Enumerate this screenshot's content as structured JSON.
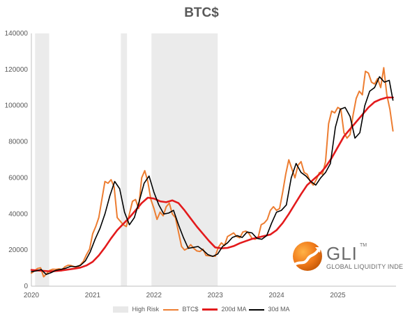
{
  "chart_data": {
    "type": "line",
    "title": "BTC$",
    "xlabel": "",
    "ylabel": "",
    "x_ticks": [
      "2020",
      "2021",
      "2022",
      "2023",
      "2024",
      "2025"
    ],
    "x_range": [
      2020.0,
      2025.95
    ],
    "ylim": [
      0,
      140000
    ],
    "y_ticks": [
      "0",
      "20000",
      "40000",
      "60000",
      "80000",
      "100000",
      "120000",
      "140000"
    ],
    "grid": false,
    "legend": "bottom",
    "high_risk_periods": [
      [
        2020.06,
        2020.29
      ],
      [
        2021.46,
        2021.56
      ],
      [
        2021.96,
        2023.04
      ]
    ],
    "series": [
      {
        "name": "BTC$",
        "color": "#ed7d31",
        "x": [
          2020.0,
          2020.05,
          2020.1,
          2020.15,
          2020.2,
          2020.25,
          2020.3,
          2020.35,
          2020.4,
          2020.45,
          2020.5,
          2020.55,
          2020.6,
          2020.65,
          2020.7,
          2020.75,
          2020.8,
          2020.85,
          2020.9,
          2020.95,
          2021.0,
          2021.05,
          2021.1,
          2021.15,
          2021.2,
          2021.25,
          2021.3,
          2021.35,
          2021.4,
          2021.45,
          2021.5,
          2021.55,
          2021.6,
          2021.65,
          2021.7,
          2021.75,
          2021.8,
          2021.85,
          2021.9,
          2021.95,
          2022.0,
          2022.05,
          2022.1,
          2022.15,
          2022.2,
          2022.25,
          2022.3,
          2022.35,
          2022.4,
          2022.45,
          2022.5,
          2022.55,
          2022.6,
          2022.65,
          2022.7,
          2022.75,
          2022.8,
          2022.85,
          2022.9,
          2022.95,
          2023.0,
          2023.05,
          2023.1,
          2023.15,
          2023.2,
          2023.25,
          2023.3,
          2023.35,
          2023.4,
          2023.45,
          2023.5,
          2023.55,
          2023.6,
          2023.65,
          2023.7,
          2023.75,
          2023.8,
          2023.85,
          2023.9,
          2023.95,
          2024.0,
          2024.05,
          2024.1,
          2024.15,
          2024.2,
          2024.25,
          2024.3,
          2024.35,
          2024.4,
          2024.45,
          2024.5,
          2024.55,
          2024.6,
          2024.65,
          2024.7,
          2024.75,
          2024.8,
          2024.85,
          2024.9,
          2024.95,
          2025.0,
          2025.05,
          2025.1,
          2025.15,
          2025.2,
          2025.25,
          2025.3,
          2025.35,
          2025.4,
          2025.45,
          2025.5,
          2025.55,
          2025.6,
          2025.65,
          2025.7,
          2025.75,
          2025.8,
          2025.85,
          2025.9
        ],
        "values": [
          7200,
          8500,
          9800,
          10200,
          5200,
          7000,
          8800,
          9400,
          9300,
          9600,
          9200,
          10800,
          11600,
          11400,
          10800,
          10600,
          11800,
          13800,
          17500,
          20500,
          29000,
          33000,
          38000,
          48000,
          58000,
          57000,
          59000,
          55000,
          38000,
          36000,
          34000,
          33000,
          40000,
          47000,
          48000,
          43000,
          60000,
          64000,
          58000,
          48000,
          43000,
          37000,
          41000,
          39000,
          44000,
          46000,
          40000,
          38000,
          30000,
          22000,
          20000,
          21000,
          23000,
          21000,
          19500,
          19200,
          20500,
          17000,
          16800,
          16700,
          16600,
          21500,
          24000,
          22500,
          27500,
          28500,
          29500,
          27500,
          26800,
          30000,
          30500,
          29200,
          26500,
          26000,
          27000,
          34000,
          35000,
          37000,
          42000,
          44000,
          42000,
          43000,
          52000,
          62000,
          70000,
          65000,
          60000,
          67000,
          69000,
          63000,
          62000,
          58000,
          56000,
          59000,
          63000,
          62000,
          69000,
          90000,
          97000,
          96000,
          99000,
          98000,
          85000,
          82000,
          84000,
          95000,
          104000,
          108000,
          106000,
          119000,
          118000,
          113000,
          112000,
          115000,
          110000,
          121000,
          106000,
          98000,
          86000
        ]
      },
      {
        "name": "200d MA",
        "color": "#e31a1c",
        "x": [
          2020.0,
          2020.1,
          2020.2,
          2020.3,
          2020.4,
          2020.5,
          2020.6,
          2020.7,
          2020.8,
          2020.9,
          2021.0,
          2021.1,
          2021.2,
          2021.3,
          2021.4,
          2021.5,
          2021.6,
          2021.7,
          2021.8,
          2021.9,
          2022.0,
          2022.1,
          2022.2,
          2022.3,
          2022.4,
          2022.5,
          2022.6,
          2022.7,
          2022.8,
          2022.9,
          2023.0,
          2023.1,
          2023.2,
          2023.3,
          2023.4,
          2023.5,
          2023.6,
          2023.7,
          2023.8,
          2023.9,
          2024.0,
          2024.1,
          2024.2,
          2024.3,
          2024.4,
          2024.5,
          2024.6,
          2024.7,
          2024.8,
          2024.9,
          2025.0,
          2025.1,
          2025.2,
          2025.3,
          2025.4,
          2025.5,
          2025.6,
          2025.7,
          2025.8,
          2025.9
        ],
        "values": [
          9000,
          8700,
          8500,
          8200,
          8400,
          8700,
          9200,
          9700,
          10300,
          11500,
          13500,
          17000,
          21500,
          26500,
          31000,
          34500,
          38000,
          42000,
          46000,
          49000,
          48500,
          47000,
          46500,
          47500,
          46000,
          42000,
          37500,
          33000,
          29000,
          25000,
          21500,
          21000,
          21200,
          22200,
          23800,
          25000,
          26200,
          27000,
          27800,
          28600,
          31000,
          35000,
          40000,
          45500,
          51000,
          56000,
          59000,
          62000,
          66000,
          71000,
          77000,
          83000,
          87000,
          91000,
          95000,
          99000,
          102000,
          103500,
          104500,
          104500
        ]
      },
      {
        "name": "30d MA",
        "color": "#000000",
        "x": [
          2020.0,
          2020.08,
          2020.16,
          2020.24,
          2020.32,
          2020.4,
          2020.48,
          2020.56,
          2020.64,
          2020.72,
          2020.8,
          2020.88,
          2020.96,
          2021.04,
          2021.12,
          2021.2,
          2021.28,
          2021.36,
          2021.44,
          2021.52,
          2021.6,
          2021.68,
          2021.76,
          2021.84,
          2021.92,
          2022.0,
          2022.08,
          2022.16,
          2022.24,
          2022.32,
          2022.4,
          2022.48,
          2022.56,
          2022.64,
          2022.72,
          2022.8,
          2022.88,
          2022.96,
          2023.04,
          2023.12,
          2023.2,
          2023.28,
          2023.36,
          2023.44,
          2023.52,
          2023.6,
          2023.68,
          2023.76,
          2023.84,
          2023.92,
          2024.0,
          2024.08,
          2024.16,
          2024.24,
          2024.32,
          2024.4,
          2024.48,
          2024.56,
          2024.64,
          2024.72,
          2024.8,
          2024.88,
          2024.96,
          2025.04,
          2025.12,
          2025.2,
          2025.28,
          2025.36,
          2025.44,
          2025.52,
          2025.6,
          2025.68,
          2025.76,
          2025.84,
          2025.9
        ],
        "values": [
          8000,
          8500,
          9200,
          6500,
          7500,
          8800,
          9300,
          9900,
          11000,
          10800,
          11500,
          14000,
          19000,
          26000,
          32000,
          40000,
          50000,
          58000,
          54000,
          41000,
          34000,
          38000,
          47000,
          57000,
          61000,
          52000,
          45000,
          40000,
          40500,
          42000,
          34000,
          27000,
          21000,
          21500,
          22000,
          20000,
          17500,
          16500,
          17800,
          22000,
          24000,
          27000,
          28000,
          27000,
          30000,
          29500,
          26500,
          26000,
          28000,
          35000,
          41000,
          42000,
          45000,
          60000,
          68000,
          63000,
          61000,
          58000,
          56000,
          60000,
          63000,
          68000,
          88000,
          98000,
          99000,
          94000,
          82000,
          85000,
          100000,
          108000,
          110000,
          116000,
          113000,
          114000,
          103000
        ]
      }
    ]
  },
  "legend": {
    "high_risk": "High Risk",
    "btc": "BTC$",
    "ma200": "200d MA",
    "ma30": "30d MA"
  },
  "logo": {
    "name": "GLI",
    "tm": "TM",
    "subtitle": "GLOBAL LIQUIDITY INDEXES"
  }
}
